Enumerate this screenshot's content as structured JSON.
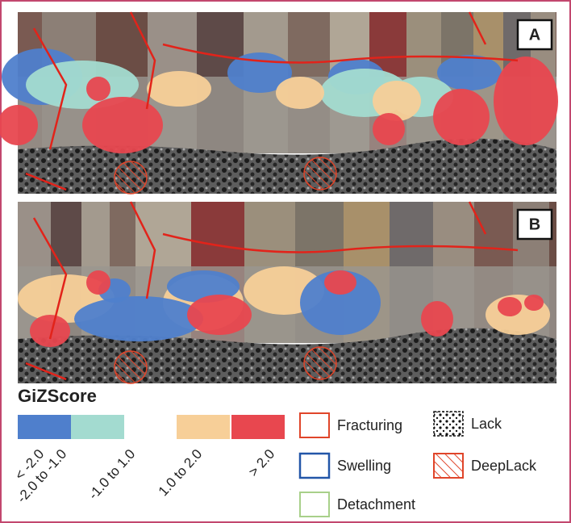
{
  "panels": [
    {
      "label": "A"
    },
    {
      "label": "B"
    }
  ],
  "legend": {
    "title": "GiZScore",
    "classes": [
      {
        "label": "< -2.0",
        "color": "#4f7fcc"
      },
      {
        "label": "-2.0 to -1.0",
        "color": "#a3dbd0"
      },
      {
        "label": "-1.0 to 1.0",
        "color": null
      },
      {
        "label": "1.0 to 2.0",
        "color": "#f7cf98"
      },
      {
        "label": "> 2.0",
        "color": "#e8474f"
      }
    ],
    "symbols": [
      {
        "label": "Fracturing"
      },
      {
        "label": "Swelling"
      },
      {
        "label": "Detachment"
      },
      {
        "label": "Lack"
      },
      {
        "label": "DeepLack"
      }
    ]
  }
}
